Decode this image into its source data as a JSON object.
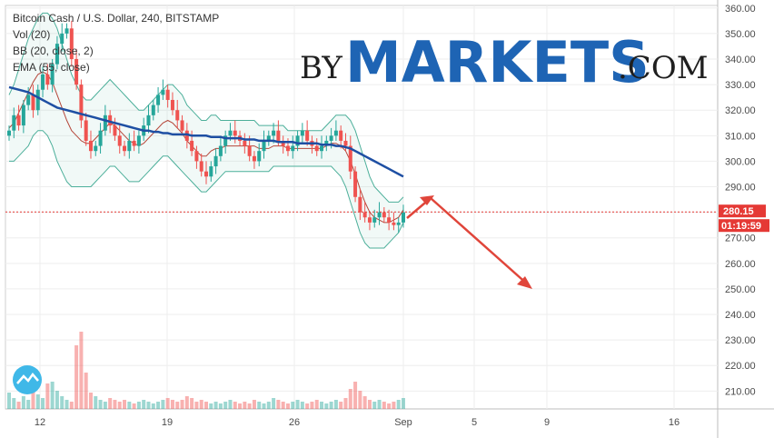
{
  "chart_data": {
    "type": "candlestick",
    "title": "Bitcoin Cash / U.S. Dollar, 240, BITSTAMP",
    "indicators": [
      "Vol (20)",
      "BB (20, close, 2)",
      "EMA (55, close)"
    ],
    "x_ticks": [
      "12",
      "19",
      "26",
      "Sep",
      "5",
      "9",
      "16"
    ],
    "y_ticks": [
      "360.00",
      "350.00",
      "340.00",
      "330.00",
      "320.00",
      "310.00",
      "300.00",
      "290.00",
      "280.00",
      "270.00",
      "260.00",
      "250.00",
      "240.00",
      "230.00",
      "220.00",
      "210.00"
    ],
    "ylim": [
      203,
      361
    ],
    "current_price": "280.15",
    "countdown": "01:19:59",
    "up_color": "#26a69a",
    "down_color": "#ef5350",
    "ema_color": "#1e4fa3",
    "bb_color": "#4caf9a",
    "series": {
      "close": [
        312,
        318,
        314,
        322,
        326,
        320,
        328,
        334,
        330,
        338,
        346,
        350,
        352,
        340,
        330,
        316,
        308,
        304,
        306,
        312,
        318,
        314,
        310,
        306,
        304,
        308,
        306,
        310,
        314,
        318,
        322,
        326,
        328,
        324,
        320,
        316,
        312,
        308,
        304,
        300,
        296,
        294,
        298,
        302,
        306,
        310,
        312,
        310,
        308,
        306,
        302,
        300,
        304,
        308,
        310,
        312,
        308,
        306,
        304,
        306,
        310,
        312,
        308,
        306,
        304,
        306,
        308,
        310,
        312,
        308,
        306,
        296,
        286,
        280,
        278,
        276,
        278,
        280,
        278,
        276,
        275,
        276,
        280
      ]
    },
    "ema55": [
      329,
      328.5,
      328,
      327.5,
      327,
      326,
      325,
      324,
      323,
      322,
      321,
      320.5,
      320,
      319.5,
      319,
      318.5,
      318,
      317.5,
      317,
      316.5,
      316,
      315.5,
      315,
      314.5,
      314,
      313.5,
      313,
      312.5,
      312,
      312,
      311.5,
      311.5,
      311,
      311,
      310.5,
      310.5,
      310.5,
      310.5,
      310,
      310,
      310,
      310,
      309.5,
      309.5,
      309.5,
      309,
      309,
      309,
      309,
      308.5,
      308.5,
      308.5,
      308,
      308,
      308,
      308,
      307.5,
      307.5,
      307.5,
      307.5,
      307,
      307,
      307,
      307,
      307,
      306.5,
      306.5,
      306.5,
      306,
      306,
      305.5,
      305,
      304,
      303,
      302,
      301,
      300,
      299,
      298,
      297,
      296,
      295,
      294
    ],
    "bb_upper": [
      326,
      330,
      336,
      342,
      348,
      352,
      356,
      358,
      358,
      356,
      352,
      346,
      340,
      334,
      330,
      326,
      324,
      324,
      326,
      328,
      330,
      332,
      330,
      328,
      326,
      324,
      322,
      320,
      320,
      322,
      324,
      326,
      328,
      330,
      330,
      328,
      326,
      322,
      320,
      318,
      316,
      316,
      318,
      318,
      316,
      316,
      316,
      316,
      316,
      316,
      316,
      316,
      314,
      314,
      314,
      314,
      314,
      314,
      312,
      312,
      312,
      312,
      312,
      312,
      312,
      312,
      314,
      316,
      318,
      318,
      318,
      316,
      312,
      306,
      300,
      294,
      290,
      288,
      286,
      284,
      284,
      284,
      286
    ],
    "bb_lower": [
      300,
      300,
      302,
      304,
      306,
      310,
      312,
      312,
      310,
      306,
      300,
      296,
      292,
      290,
      290,
      290,
      290,
      290,
      292,
      294,
      296,
      298,
      298,
      296,
      294,
      292,
      292,
      292,
      294,
      296,
      298,
      300,
      302,
      302,
      300,
      298,
      296,
      294,
      292,
      290,
      288,
      288,
      290,
      292,
      294,
      296,
      296,
      296,
      296,
      296,
      296,
      296,
      296,
      296,
      296,
      298,
      298,
      298,
      298,
      298,
      298,
      298,
      298,
      298,
      298,
      298,
      298,
      298,
      296,
      294,
      290,
      284,
      278,
      272,
      268,
      266,
      266,
      266,
      266,
      268,
      270,
      272,
      276
    ],
    "volume": [
      18,
      12,
      8,
      14,
      10,
      22,
      16,
      12,
      28,
      30,
      20,
      14,
      10,
      8,
      70,
      85,
      40,
      18,
      14,
      10,
      8,
      12,
      10,
      8,
      10,
      8,
      6,
      8,
      10,
      8,
      6,
      8,
      10,
      12,
      10,
      8,
      10,
      14,
      12,
      8,
      10,
      8,
      6,
      8,
      6,
      8,
      10,
      8,
      6,
      8,
      6,
      10,
      8,
      6,
      8,
      12,
      10,
      8,
      6,
      8,
      10,
      8,
      6,
      8,
      10,
      8,
      6,
      8,
      10,
      8,
      12,
      22,
      30,
      20,
      14,
      10,
      8,
      10,
      8,
      6,
      8,
      10,
      12
    ]
  },
  "watermark": {
    "prefix": "BY",
    "brand": "MARKETS",
    "suffix": ".COM"
  }
}
